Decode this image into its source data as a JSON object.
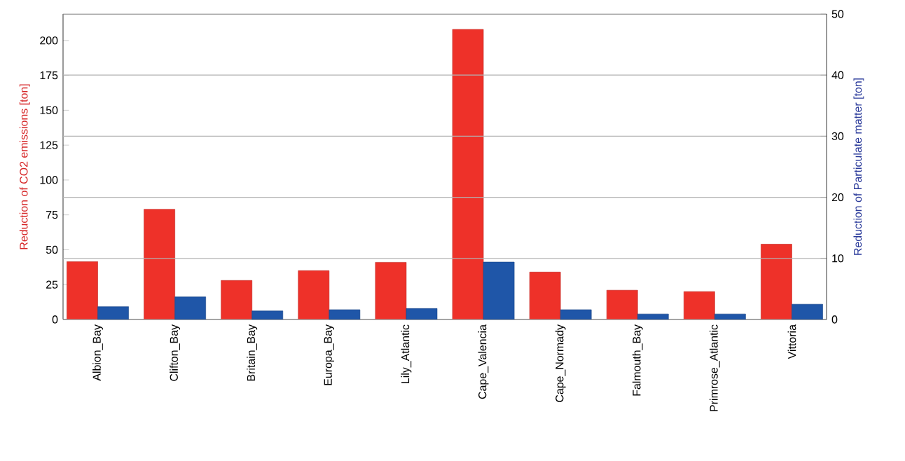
{
  "chart_data": {
    "type": "bar",
    "ylabel": "Reduction of CO2 emissions [ton]",
    "y2label": "Reduction of Particulate matter [ton]",
    "categories": [
      "Albion_Bay",
      "Clifton_Bay",
      "Britain_Bay",
      "Europa_Bay",
      "Lily_Atlantic",
      "Cape_Valencia",
      "Cape_Normady",
      "Falmouth_Bay",
      "Primrose_Atlantic",
      "Vittoria"
    ],
    "series": [
      {
        "color": "#ee3129",
        "values": [
          41.5,
          79,
          28,
          35,
          41,
          208,
          34,
          21,
          20,
          54
        ]
      },
      {
        "color": "#1f56a8",
        "axis": "y2",
        "values": [
          2.1,
          3.7,
          1.4,
          1.6,
          1.8,
          9.4,
          1.6,
          0.9,
          0.9,
          2.5
        ]
      }
    ],
    "ylim": [
      0,
      219
    ],
    "yticks": [
      0,
      25,
      50,
      75,
      100,
      125,
      150,
      175,
      200
    ],
    "y2lim": [
      0,
      50
    ],
    "y2ticks": [
      0,
      10,
      20,
      30,
      40,
      50
    ],
    "grid": "y"
  }
}
